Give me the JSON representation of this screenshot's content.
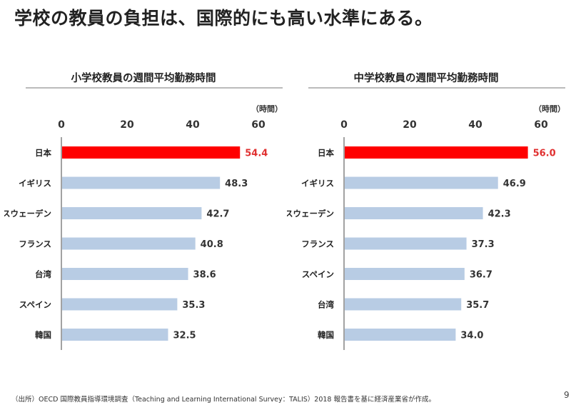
{
  "title": "学校の教員の負担は、国際的にも高い水準にある。",
  "footnote": "（出所）OECD 国際教員指導環境調査（Teaching and Learning International Survey：TALIS）2018 報告書を基に経済産業省が作成。",
  "page_number": "9",
  "colors": {
    "highlight": "#ff0000",
    "bar": "#b8cce4",
    "highlight_label": "#e03030"
  },
  "chart_data": [
    {
      "type": "bar",
      "orientation": "horizontal",
      "title": "小学校教員の週間平均勤務時間",
      "unit_label": "（時間）",
      "xlim": [
        0,
        60
      ],
      "ticks": [
        0,
        20,
        40,
        60
      ],
      "categories": [
        "日本",
        "イギリス",
        "スウェーデン",
        "フランス",
        "台湾",
        "スペイン",
        "韓国"
      ],
      "values": [
        54.4,
        48.3,
        42.7,
        40.8,
        38.6,
        35.3,
        32.5
      ],
      "value_labels": [
        "54.4",
        "48.3",
        "42.7",
        "40.8",
        "38.6",
        "35.3",
        "32.5"
      ],
      "highlight": "日本"
    },
    {
      "type": "bar",
      "orientation": "horizontal",
      "title": "中学校教員の週間平均勤務時間",
      "unit_label": "（時間）",
      "xlim": [
        0,
        60
      ],
      "ticks": [
        0,
        20,
        40,
        60
      ],
      "categories": [
        "日本",
        "イギリス",
        "スウェーデン",
        "フランス",
        "スペイン",
        "台湾",
        "韓国"
      ],
      "values": [
        56.0,
        46.9,
        42.3,
        37.3,
        36.7,
        35.7,
        34.0
      ],
      "value_labels": [
        "56.0",
        "46.9",
        "42.3",
        "37.3",
        "36.7",
        "35.7",
        "34.0"
      ],
      "highlight": "日本"
    }
  ]
}
